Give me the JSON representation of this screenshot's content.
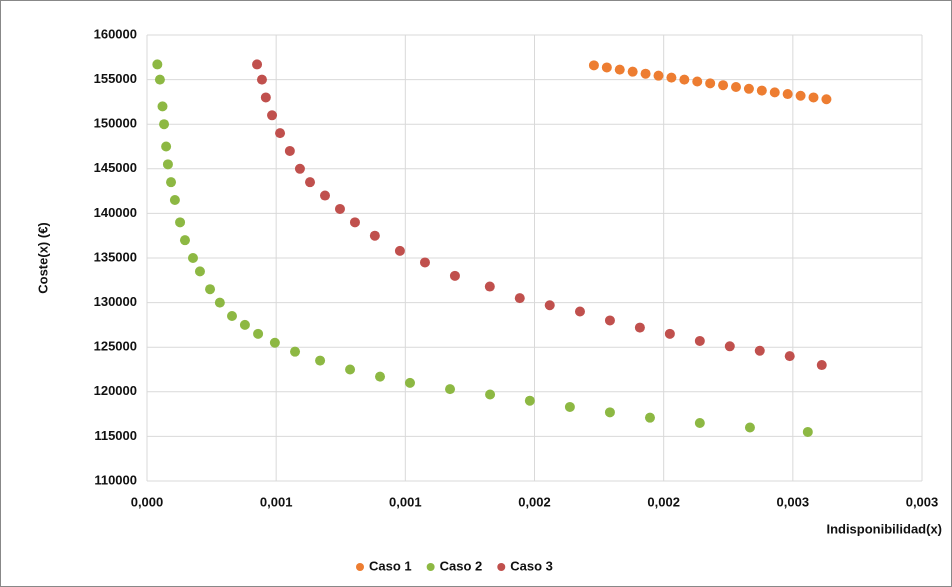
{
  "chart_data": {
    "type": "scatter",
    "y_label": "Coste(x) (€)",
    "x_label": "Indisponibilidad(x)",
    "xlim": [
      0,
      0.003
    ],
    "ylim": [
      110000,
      160000
    ],
    "xticks": [
      {
        "value": 0,
        "label": "0,000"
      },
      {
        "value": 0.0005,
        "label": "0,001"
      },
      {
        "value": 0.001,
        "label": "0,001"
      },
      {
        "value": 0.0015,
        "label": "0,002"
      },
      {
        "value": 0.002,
        "label": "0,002"
      },
      {
        "value": 0.0025,
        "label": "0,003"
      },
      {
        "value": 0.003,
        "label": "0,003"
      }
    ],
    "yticks": [
      110000,
      115000,
      120000,
      125000,
      130000,
      135000,
      140000,
      145000,
      150000,
      155000,
      160000
    ],
    "grid": true,
    "legend": "bottom",
    "series": [
      {
        "name": "Caso 1",
        "color": "#ed7d31",
        "x": [
          0.00173,
          0.00178,
          0.00183,
          0.00188,
          0.00193,
          0.00198,
          0.00203,
          0.00208,
          0.00213,
          0.00218,
          0.00223,
          0.00228,
          0.00233,
          0.00238,
          0.00243,
          0.00248,
          0.00253,
          0.00258,
          0.00263
        ],
        "values": [
          156600,
          156360,
          156120,
          155890,
          155660,
          155440,
          155220,
          155000,
          154790,
          154580,
          154370,
          154170,
          153970,
          153770,
          153570,
          153380,
          153190,
          153000,
          152800
        ]
      },
      {
        "name": "Caso 2",
        "color": "#8db843",
        "x": [
          4e-05,
          5e-05,
          6e-05,
          6.6e-05,
          7.4e-05,
          8.1e-05,
          9.3e-05,
          0.000108,
          0.000128,
          0.000147,
          0.000178,
          0.000205,
          0.000244,
          0.000282,
          0.000329,
          0.000379,
          0.00043,
          0.000495,
          0.000573,
          0.00067,
          0.000786,
          0.000902,
          0.001018,
          0.001173,
          0.001328,
          0.001482,
          0.001637,
          0.001792,
          0.001947,
          0.00214,
          0.002334,
          0.002558
        ],
        "values": [
          156700,
          155000,
          152000,
          150000,
          147500,
          145500,
          143500,
          141500,
          139000,
          137000,
          135000,
          133500,
          131500,
          130000,
          128500,
          127500,
          126500,
          125500,
          124500,
          123500,
          122500,
          121700,
          121000,
          120300,
          119700,
          119000,
          118300,
          117700,
          117100,
          116500,
          116000,
          115500
        ]
      },
      {
        "name": "Caso 3",
        "color": "#c0504d",
        "x": [
          0.000426,
          0.000445,
          0.00046,
          0.000484,
          0.000515,
          0.000553,
          0.000592,
          0.000631,
          0.000689,
          0.000747,
          0.000805,
          0.000882,
          0.000979,
          0.001076,
          0.001192,
          0.001327,
          0.001443,
          0.001559,
          0.001676,
          0.001792,
          0.001908,
          0.002024,
          0.00214,
          0.002256,
          0.002372,
          0.002488,
          0.002612
        ],
        "values": [
          156700,
          155000,
          153000,
          151000,
          149000,
          147000,
          145000,
          143500,
          142000,
          140500,
          139000,
          137500,
          135800,
          134500,
          133000,
          131800,
          130500,
          129700,
          129000,
          128000,
          127200,
          126500,
          125700,
          125100,
          124600,
          124000,
          123000
        ]
      }
    ]
  }
}
